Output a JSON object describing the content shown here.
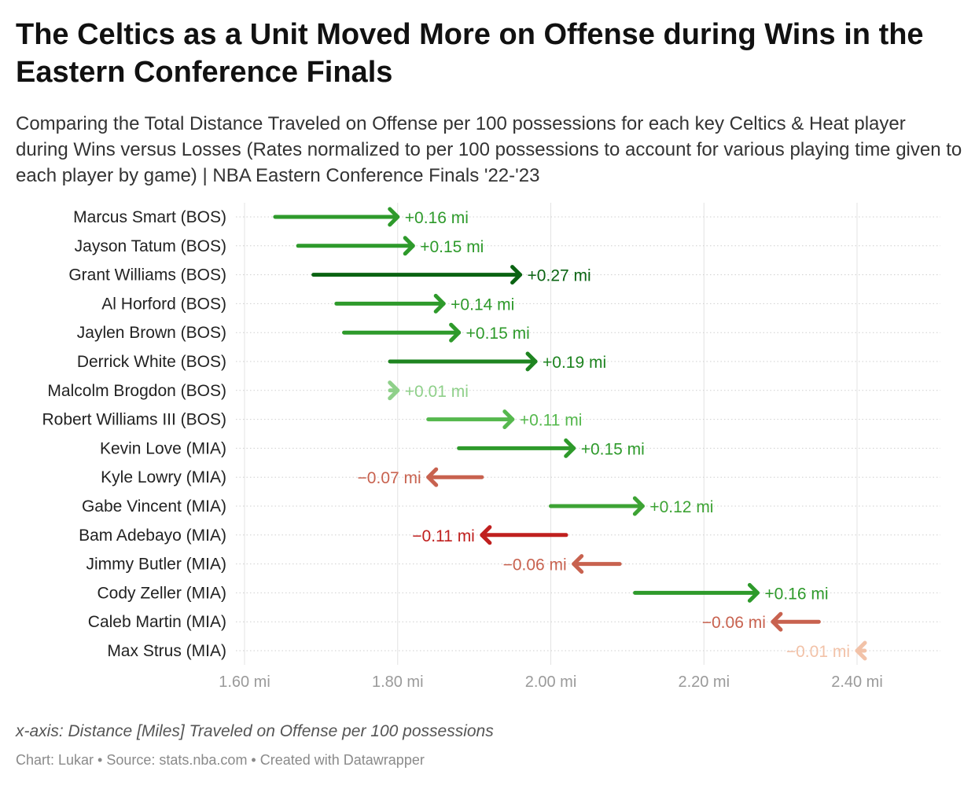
{
  "header": {
    "title": "The Celtics as a Unit Moved More on Offense during Wins in the Eastern Conference Finals",
    "subtitle": "Comparing the Total Distance Traveled on Offense per 100 possessions for each key Celtics & Heat player during Wins versus Losses (Rates normalized to per 100 possessions to account for various playing time given to each player by game) | NBA Eastern Conference Finals '22-'23"
  },
  "footer": {
    "note": "x-axis: Distance [Miles] Traveled on Offense per 100 possessions",
    "credit": "Chart: Lukar • Source: stats.nba.com • Created with Datawrapper"
  },
  "chart_data": {
    "type": "arrow",
    "xlim": [
      1.58,
      2.52
    ],
    "xticks": [
      1.6,
      1.8,
      2.0,
      2.2,
      2.4
    ],
    "xtick_labels": [
      "1.60 mi",
      "1.80 mi",
      "2.00 mi",
      "2.20 mi",
      "2.40 mi"
    ],
    "grid": true,
    "rows": [
      {
        "player": "Marcus Smart (BOS)",
        "start": 1.64,
        "end": 1.8,
        "change_label": "+0.16 mi",
        "color": "#2e9a2b"
      },
      {
        "player": "Jayson Tatum (BOS)",
        "start": 1.67,
        "end": 1.82,
        "change_label": "+0.15 mi",
        "color": "#2e9a2b"
      },
      {
        "player": "Grant Williams (BOS)",
        "start": 1.69,
        "end": 1.96,
        "change_label": "+0.27 mi",
        "color": "#0a6312"
      },
      {
        "player": "Al Horford (BOS)",
        "start": 1.72,
        "end": 1.86,
        "change_label": "+0.14 mi",
        "color": "#2e9a2b"
      },
      {
        "player": "Jaylen Brown (BOS)",
        "start": 1.73,
        "end": 1.88,
        "change_label": "+0.15 mi",
        "color": "#2e9a2b"
      },
      {
        "player": "Derrick White (BOS)",
        "start": 1.79,
        "end": 1.98,
        "change_label": "+0.19 mi",
        "color": "#1e8420"
      },
      {
        "player": "Malcolm Brogdon (BOS)",
        "start": 1.79,
        "end": 1.8,
        "change_label": "+0.01 mi",
        "color": "#8fd08a"
      },
      {
        "player": "Robert Williams III (BOS)",
        "start": 1.84,
        "end": 1.95,
        "change_label": "+0.11 mi",
        "color": "#55b84d"
      },
      {
        "player": "Kevin Love (MIA)",
        "start": 1.88,
        "end": 2.03,
        "change_label": "+0.15 mi",
        "color": "#2e9a2b"
      },
      {
        "player": "Kyle Lowry (MIA)",
        "start": 1.91,
        "end": 1.84,
        "change_label": "−0.07 mi",
        "color": "#c8624f"
      },
      {
        "player": "Gabe Vincent (MIA)",
        "start": 2.0,
        "end": 2.12,
        "change_label": "+0.12 mi",
        "color": "#3da334"
      },
      {
        "player": "Bam Adebayo (MIA)",
        "start": 2.02,
        "end": 1.91,
        "change_label": "−0.11 mi",
        "color": "#c0201f"
      },
      {
        "player": "Jimmy Butler (MIA)",
        "start": 2.09,
        "end": 2.03,
        "change_label": "−0.06 mi",
        "color": "#c8624f"
      },
      {
        "player": "Cody Zeller (MIA)",
        "start": 2.11,
        "end": 2.27,
        "change_label": "+0.16 mi",
        "color": "#2e9a2b"
      },
      {
        "player": "Caleb Martin (MIA)",
        "start": 2.35,
        "end": 2.29,
        "change_label": "−0.06 mi",
        "color": "#c8624f"
      },
      {
        "player": "Max Strus (MIA)",
        "start": 2.41,
        "end": 2.4,
        "change_label": "−0.01 mi",
        "color": "#f2c2a8"
      }
    ]
  }
}
